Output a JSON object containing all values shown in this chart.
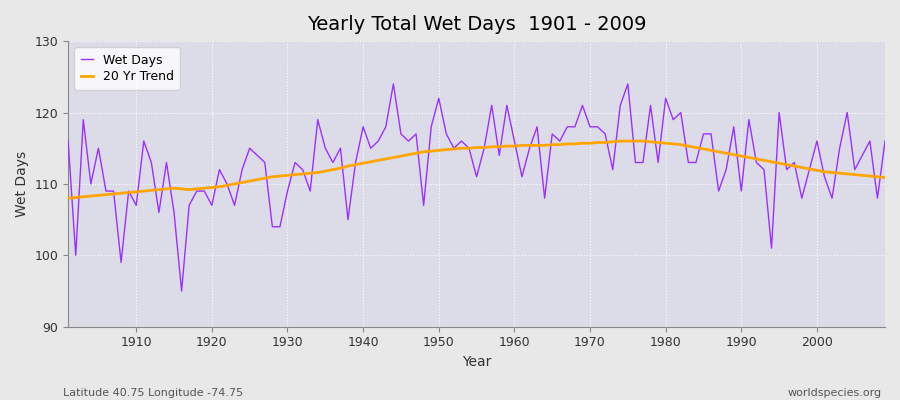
{
  "title": "Yearly Total Wet Days  1901 - 2009",
  "xlabel": "Year",
  "ylabel": "Wet Days",
  "footnote_left": "Latitude 40.75 Longitude -74.75",
  "footnote_right": "worldspecies.org",
  "xlim": [
    1901,
    2009
  ],
  "ylim": [
    90,
    130
  ],
  "yticks": [
    90,
    100,
    110,
    120,
    130
  ],
  "xticks": [
    1910,
    1920,
    1930,
    1940,
    1950,
    1960,
    1970,
    1980,
    1990,
    2000
  ],
  "wet_days_color": "#9B30FF",
  "trend_color": "#FFA500",
  "background_color": "#E8E8E8",
  "plot_bg_color": "#E0E0E8",
  "legend_entries": [
    "Wet Days",
    "20 Yr Trend"
  ],
  "years": [
    1901,
    1902,
    1903,
    1904,
    1905,
    1906,
    1907,
    1908,
    1909,
    1910,
    1911,
    1912,
    1913,
    1914,
    1915,
    1916,
    1917,
    1918,
    1919,
    1920,
    1921,
    1922,
    1923,
    1924,
    1925,
    1926,
    1927,
    1928,
    1929,
    1930,
    1931,
    1932,
    1933,
    1934,
    1935,
    1936,
    1937,
    1938,
    1939,
    1940,
    1941,
    1942,
    1943,
    1944,
    1945,
    1946,
    1947,
    1948,
    1949,
    1950,
    1951,
    1952,
    1953,
    1954,
    1955,
    1956,
    1957,
    1958,
    1959,
    1960,
    1961,
    1962,
    1963,
    1964,
    1965,
    1966,
    1967,
    1968,
    1969,
    1970,
    1971,
    1972,
    1973,
    1974,
    1975,
    1976,
    1977,
    1978,
    1979,
    1980,
    1981,
    1982,
    1983,
    1984,
    1985,
    1986,
    1987,
    1988,
    1989,
    1990,
    1991,
    1992,
    1993,
    1994,
    1995,
    1996,
    1997,
    1998,
    1999,
    2000,
    2001,
    2002,
    2003,
    2004,
    2005,
    2006,
    2007,
    2008,
    2009
  ],
  "wet_days": [
    116,
    100,
    119,
    110,
    115,
    109,
    109,
    99,
    109,
    107,
    116,
    113,
    106,
    113,
    106,
    95,
    107,
    109,
    109,
    107,
    112,
    110,
    107,
    112,
    115,
    114,
    113,
    104,
    104,
    109,
    113,
    112,
    109,
    119,
    115,
    113,
    115,
    105,
    113,
    118,
    115,
    116,
    118,
    124,
    117,
    116,
    117,
    107,
    118,
    122,
    117,
    115,
    116,
    115,
    111,
    115,
    121,
    114,
    121,
    116,
    111,
    115,
    118,
    108,
    117,
    116,
    118,
    118,
    121,
    118,
    118,
    117,
    112,
    121,
    124,
    113,
    113,
    121,
    113,
    122,
    119,
    120,
    113,
    113,
    117,
    117,
    109,
    112,
    118,
    109,
    119,
    113,
    112,
    101,
    120,
    112,
    113,
    108,
    112,
    116,
    111,
    108,
    115,
    120,
    112,
    114,
    116,
    108,
    116
  ],
  "trend": [
    108.0,
    108.1,
    108.2,
    108.3,
    108.4,
    108.5,
    108.6,
    108.7,
    108.8,
    108.9,
    109.0,
    109.1,
    109.2,
    109.3,
    109.4,
    109.3,
    109.2,
    109.3,
    109.4,
    109.5,
    109.6,
    109.8,
    110.0,
    110.2,
    110.4,
    110.6,
    110.8,
    111.0,
    111.1,
    111.2,
    111.3,
    111.4,
    111.5,
    111.6,
    111.8,
    112.0,
    112.2,
    112.5,
    112.7,
    112.9,
    113.1,
    113.3,
    113.5,
    113.7,
    113.9,
    114.1,
    114.3,
    114.5,
    114.6,
    114.7,
    114.8,
    114.9,
    115.0,
    115.0,
    115.1,
    115.1,
    115.2,
    115.2,
    115.3,
    115.3,
    115.4,
    115.4,
    115.4,
    115.4,
    115.5,
    115.5,
    115.6,
    115.6,
    115.7,
    115.7,
    115.8,
    115.8,
    115.9,
    116.0,
    116.0,
    116.0,
    116.0,
    115.9,
    115.8,
    115.7,
    115.6,
    115.5,
    115.3,
    115.1,
    114.9,
    114.7,
    114.5,
    114.3,
    114.1,
    113.9,
    113.7,
    113.5,
    113.3,
    113.1,
    112.9,
    112.7,
    112.5,
    112.3,
    112.1,
    111.9,
    111.7,
    111.6,
    111.5,
    111.4,
    111.3,
    111.2,
    111.1,
    111.0,
    110.9
  ]
}
